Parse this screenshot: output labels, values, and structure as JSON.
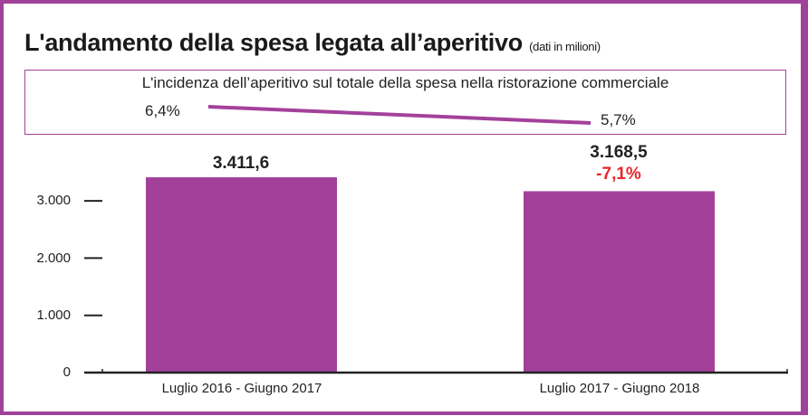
{
  "chart_data": {
    "type": "bar",
    "title": "L'andamento della spesa legata all’aperitivo",
    "subtitle": "(dati in milioni)",
    "categories": [
      "Luglio 2016 - Giugno 2017",
      "Luglio 2017 - Giugno 2018"
    ],
    "values": [
      3411.6,
      3168.5
    ],
    "value_labels": [
      "3.411,6",
      "3.168,5"
    ],
    "change_label": "-7,1%",
    "ylim": [
      0,
      3300
    ],
    "yticks": [
      0,
      1000,
      2000,
      3000
    ],
    "ytick_labels": [
      "0",
      "1.000",
      "2.000",
      "3.000"
    ],
    "inset": {
      "type": "line",
      "title": "L'incidenza dell’aperitivo sul totale della spesa nella ristorazione commerciale",
      "values": [
        6.4,
        5.7
      ],
      "labels": [
        "6,4%",
        "5,7%"
      ]
    },
    "colors": {
      "bar": "#a3419a",
      "frame": "#a0429a",
      "change": "#e8262a"
    }
  }
}
